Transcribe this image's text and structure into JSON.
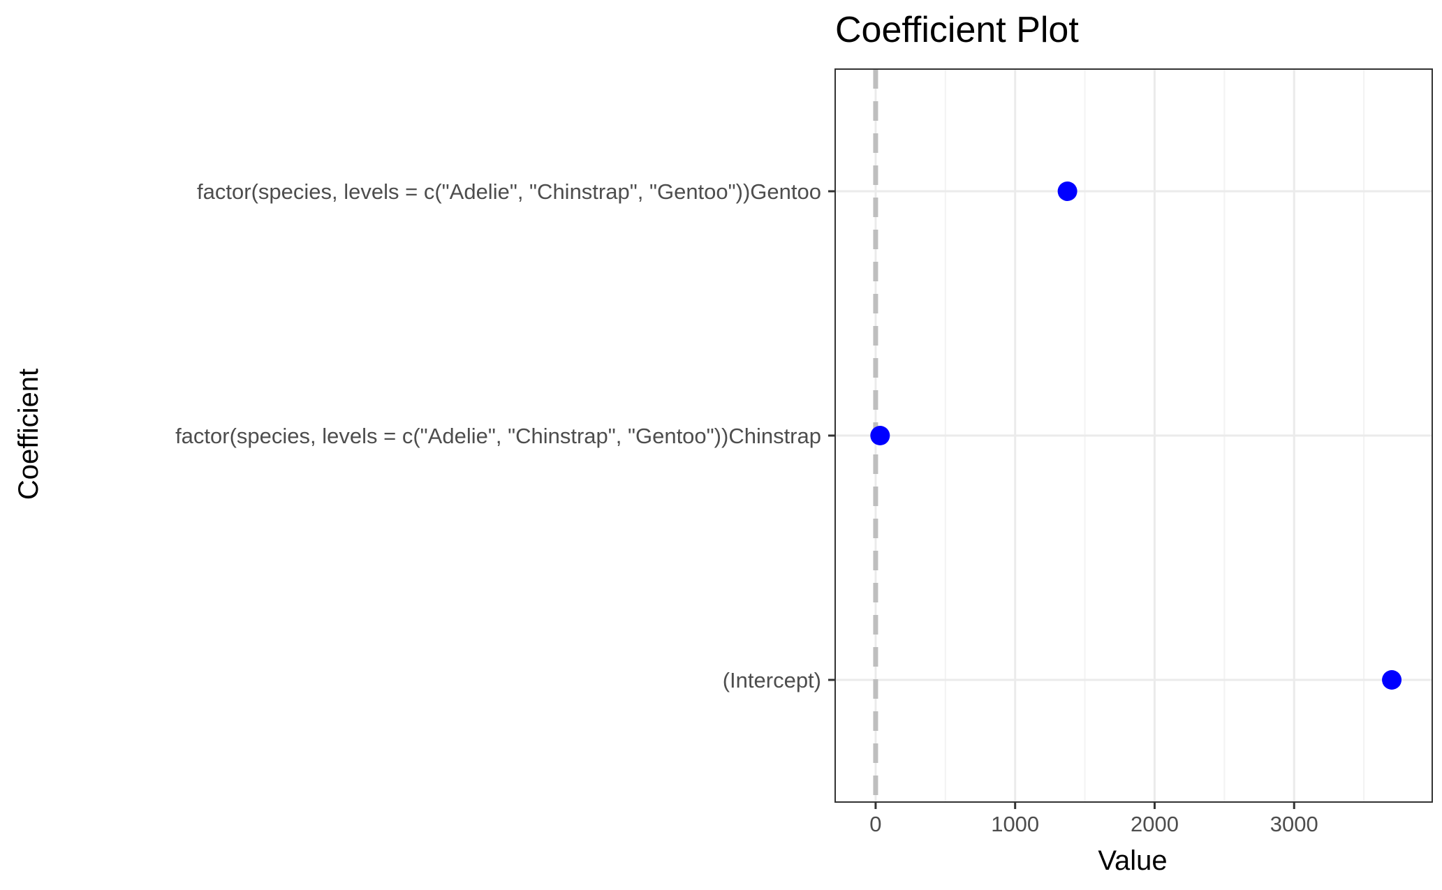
{
  "chart_data": {
    "type": "scatter",
    "title": "Coefficient Plot",
    "xlabel": "Value",
    "ylabel": "Coefficient",
    "xlim": [
      -290,
      3990
    ],
    "x_ticks": [
      0,
      1000,
      2000,
      3000
    ],
    "x_tick_labels": [
      "0",
      "1000",
      "2000",
      "3000"
    ],
    "categories": [
      "(Intercept)",
      "factor(species, levels = c(\"Adelie\", \"Chinstrap\", \"Gentoo\"))Chinstrap",
      "factor(species, levels = c(\"Adelie\", \"Chinstrap\", \"Gentoo\"))Gentoo"
    ],
    "values": [
      3700,
      32,
      1375
    ],
    "reference_line": {
      "x": 0,
      "style": "dashed"
    },
    "grid": true,
    "legend": "none",
    "colors": {
      "point": "#0000ff",
      "reference_line": "#bebebe",
      "grid_major": "#ebebeb",
      "grid_minor": "#f3f3f3",
      "panel_border": "#333333",
      "tick_label": "#4d4d4d"
    }
  }
}
